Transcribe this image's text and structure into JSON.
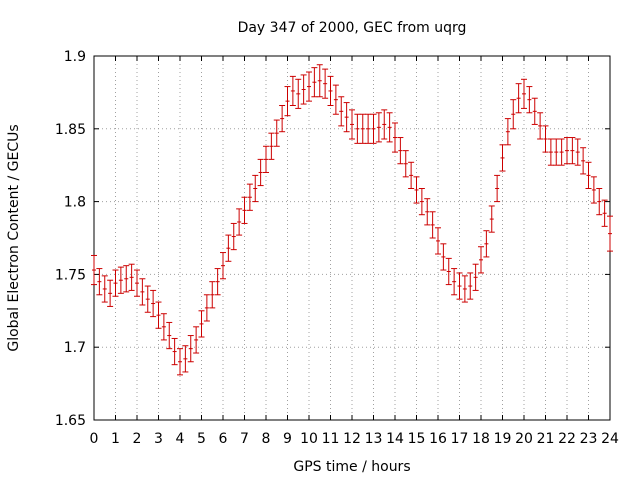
{
  "chart_data": {
    "type": "scatter",
    "style": "errorbars",
    "title": "Day 347 of 2000, GEC from uqrg",
    "xlabel": "GPS time / hours",
    "ylabel": "Global Electron Content / GECUs",
    "xlim": [
      0,
      24
    ],
    "ylim": [
      1.65,
      1.9
    ],
    "grid": true,
    "marker_color": "#cc0000",
    "x_ticks": [
      "0",
      "1",
      "2",
      "3",
      "4",
      "5",
      "6",
      "7",
      "8",
      "9",
      "10",
      "11",
      "12",
      "13",
      "14",
      "15",
      "16",
      "17",
      "18",
      "19",
      "20",
      "21",
      "22",
      "23",
      "24"
    ],
    "y_ticks": [
      "1.65",
      "1.7",
      "1.75",
      "1.8",
      "1.85",
      "1.9"
    ],
    "series": [
      {
        "name": "GEC",
        "x": [
          0,
          0.25,
          0.5,
          0.75,
          1,
          1.25,
          1.5,
          1.75,
          2,
          2.25,
          2.5,
          2.75,
          3,
          3.25,
          3.5,
          3.75,
          4,
          4.25,
          4.5,
          4.75,
          5,
          5.25,
          5.5,
          5.75,
          6,
          6.25,
          6.5,
          6.75,
          7,
          7.25,
          7.5,
          7.75,
          8,
          8.25,
          8.5,
          8.75,
          9,
          9.25,
          9.5,
          9.75,
          10,
          10.25,
          10.5,
          10.75,
          11,
          11.25,
          11.5,
          11.75,
          12,
          12.25,
          12.5,
          12.75,
          13,
          13.25,
          13.5,
          13.75,
          14,
          14.25,
          14.5,
          14.75,
          15,
          15.25,
          15.5,
          15.75,
          16,
          16.25,
          16.5,
          16.75,
          17,
          17.25,
          17.5,
          17.75,
          18,
          18.25,
          18.5,
          18.75,
          19,
          19.25,
          19.5,
          19.75,
          20,
          20.25,
          20.5,
          20.75,
          21,
          21.25,
          21.5,
          21.75,
          22,
          22.25,
          22.5,
          22.75,
          23,
          23.25,
          23.5,
          23.75,
          24
        ],
        "y": [
          1.753,
          1.745,
          1.74,
          1.737,
          1.744,
          1.746,
          1.747,
          1.748,
          1.744,
          1.738,
          1.733,
          1.73,
          1.722,
          1.714,
          1.708,
          1.697,
          1.69,
          1.692,
          1.699,
          1.705,
          1.716,
          1.727,
          1.736,
          1.745,
          1.756,
          1.768,
          1.776,
          1.786,
          1.794,
          1.803,
          1.809,
          1.82,
          1.829,
          1.838,
          1.847,
          1.857,
          1.869,
          1.876,
          1.874,
          1.877,
          1.879,
          1.882,
          1.883,
          1.881,
          1.876,
          1.87,
          1.862,
          1.858,
          1.853,
          1.85,
          1.85,
          1.85,
          1.85,
          1.851,
          1.853,
          1.851,
          1.844,
          1.835,
          1.826,
          1.818,
          1.808,
          1.8,
          1.793,
          1.784,
          1.773,
          1.762,
          1.752,
          1.745,
          1.742,
          1.74,
          1.742,
          1.748,
          1.76,
          1.771,
          1.788,
          1.809,
          1.83,
          1.848,
          1.86,
          1.871,
          1.874,
          1.87,
          1.862,
          1.852,
          1.843,
          1.834,
          1.834,
          1.834,
          1.835,
          1.835,
          1.834,
          1.828,
          1.818,
          1.808,
          1.8,
          1.792,
          1.778
        ],
        "err": [
          0.01,
          0.009,
          0.009,
          0.009,
          0.009,
          0.009,
          0.009,
          0.009,
          0.009,
          0.009,
          0.009,
          0.009,
          0.009,
          0.009,
          0.009,
          0.009,
          0.009,
          0.009,
          0.009,
          0.009,
          0.009,
          0.009,
          0.009,
          0.009,
          0.009,
          0.009,
          0.009,
          0.009,
          0.009,
          0.009,
          0.009,
          0.009,
          0.009,
          0.009,
          0.009,
          0.009,
          0.01,
          0.01,
          0.01,
          0.01,
          0.01,
          0.01,
          0.011,
          0.01,
          0.01,
          0.01,
          0.01,
          0.01,
          0.01,
          0.01,
          0.01,
          0.01,
          0.01,
          0.01,
          0.01,
          0.01,
          0.01,
          0.009,
          0.009,
          0.009,
          0.009,
          0.009,
          0.009,
          0.009,
          0.009,
          0.009,
          0.009,
          0.009,
          0.009,
          0.009,
          0.009,
          0.009,
          0.009,
          0.009,
          0.009,
          0.009,
          0.009,
          0.009,
          0.01,
          0.01,
          0.01,
          0.009,
          0.009,
          0.009,
          0.009,
          0.009,
          0.009,
          0.009,
          0.009,
          0.009,
          0.009,
          0.009,
          0.009,
          0.009,
          0.009,
          0.009,
          0.012
        ]
      }
    ]
  }
}
